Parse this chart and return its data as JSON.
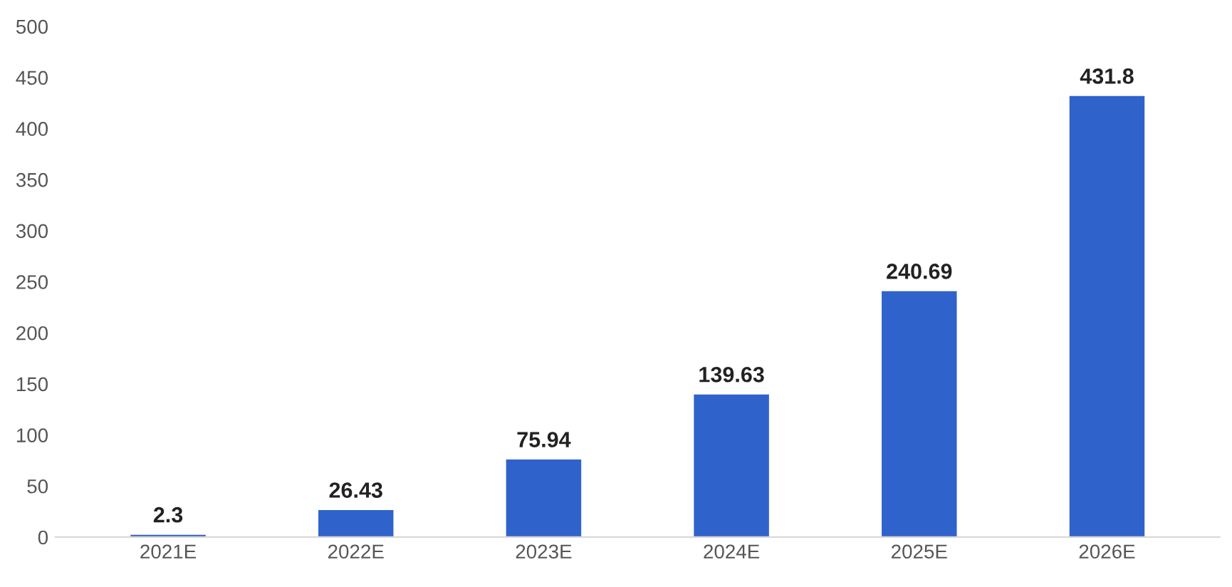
{
  "chart_data": {
    "type": "bar",
    "categories": [
      "2021E",
      "2022E",
      "2023E",
      "2024E",
      "2025E",
      "2026E"
    ],
    "values": [
      2.3,
      26.43,
      75.94,
      139.63,
      240.69,
      431.8
    ],
    "color": "#3062cc",
    "ylim": [
      0,
      500
    ],
    "yticks": [
      0,
      50,
      100,
      150,
      200,
      250,
      300,
      350,
      400,
      450,
      500
    ],
    "data_labels": true,
    "grid": false
  }
}
